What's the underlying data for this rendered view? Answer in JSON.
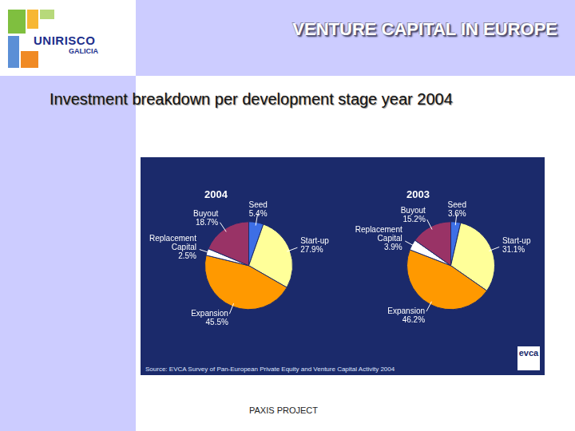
{
  "header": "VENTURE CAPITAL IN EUROPE",
  "heading": "Investment breakdown per development stage year 2004",
  "logo": [
    "UNIRISCO",
    "GALICIA"
  ],
  "source": "Source: EVCA Survey of Pan-European Private Equity and Venture Capital Activity 2004",
  "source_logo": "evca",
  "footer": "PAXIS PROJECT",
  "chart_data": [
    {
      "type": "pie",
      "title": "2004",
      "categories": [
        "Seed",
        "Start-up",
        "Expansion",
        "Replacement Capital",
        "Buyout"
      ],
      "values": [
        5.4,
        27.9,
        45.5,
        2.5,
        18.7
      ],
      "value_labels": [
        "5.4%",
        "27.9%",
        "45.5%",
        "2.5%",
        "18.7%"
      ],
      "colors": [
        "#3d6fe6",
        "#ffff99",
        "#ff9900",
        "#ffffff",
        "#993366"
      ],
      "data_labels": true
    },
    {
      "type": "pie",
      "title": "2003",
      "categories": [
        "Seed",
        "Start-up",
        "Expansion",
        "Replacement Capital",
        "Buyout"
      ],
      "values": [
        3.6,
        31.1,
        46.2,
        3.9,
        15.2
      ],
      "value_labels": [
        "3.6%",
        "31.1%",
        "46.2%",
        "3.9%",
        "15.2%"
      ],
      "colors": [
        "#3d6fe6",
        "#ffff99",
        "#ff9900",
        "#ffffff",
        "#993366"
      ],
      "data_labels": true
    }
  ]
}
